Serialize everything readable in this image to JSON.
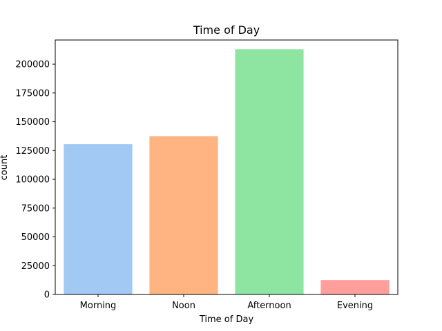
{
  "chart_data": {
    "type": "bar",
    "title": "Time of Day",
    "xlabel": "Time of Day",
    "ylabel": "count",
    "categories": [
      "Morning",
      "Noon",
      "Afternoon",
      "Evening"
    ],
    "values": [
      130500,
      137500,
      213000,
      12500
    ],
    "colors": [
      "#a1c9f4",
      "#ffb482",
      "#8de5a1",
      "#ff9f9b"
    ],
    "ylim": [
      0,
      221000
    ],
    "yticks": [
      0,
      25000,
      50000,
      75000,
      100000,
      125000,
      150000,
      175000,
      200000
    ],
    "grid": false,
    "legend": "none"
  }
}
